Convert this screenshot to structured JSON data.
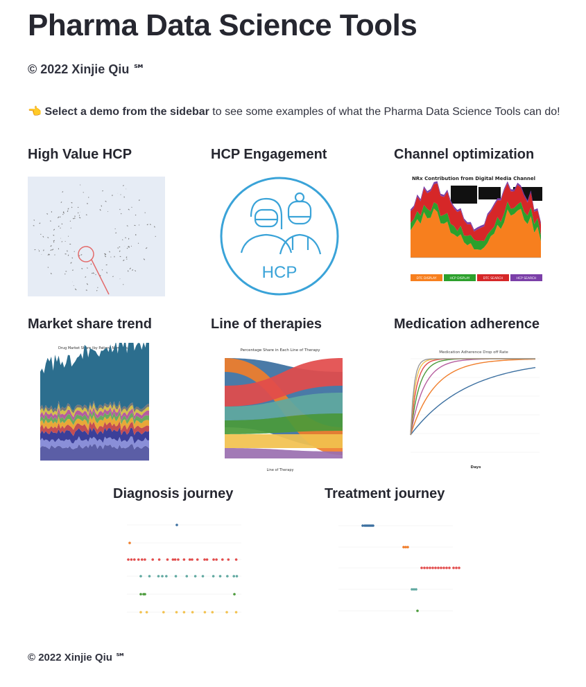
{
  "header": {
    "title": "Pharma Data Science Tools",
    "copyright": "© 2022 Xinjie Qiu ℠"
  },
  "intro": {
    "icon": "pointing-hand-icon",
    "bold": "Select a demo from the sidebar",
    "rest": " to see some examples of what the Pharma Data Science Tools can do!"
  },
  "demos": [
    {
      "title": "High Value HCP"
    },
    {
      "title": "HCP Engagement",
      "badge": "HCP"
    },
    {
      "title": "Channel optimization",
      "chart_title": "NRx Contribution from Digital Media Channel",
      "legend": [
        "DTC DISPLAY",
        "HCP DISPLAY",
        "DTC SEARCH",
        "HCP SEARCH"
      ],
      "colors": [
        "#f77f1e",
        "#2ca02c",
        "#d62728",
        "#7b3fa8"
      ]
    },
    {
      "title": "Market share trend",
      "chart_title": "Drug Market Share (by Patient Numbers)"
    },
    {
      "title": "Line of therapies",
      "chart_title": "Percentage Share in Each Line of Therapy",
      "xlabel": "Line of Therapy"
    },
    {
      "title": "Medication adherence",
      "chart_title": "Medication Adherence Drop off Rate",
      "xlabel": "Days"
    },
    {
      "title": "Diagnosis journey"
    },
    {
      "title": "Treatment journey"
    }
  ],
  "footer": {
    "copyright": "© 2022 Xinjie Qiu ℠"
  }
}
